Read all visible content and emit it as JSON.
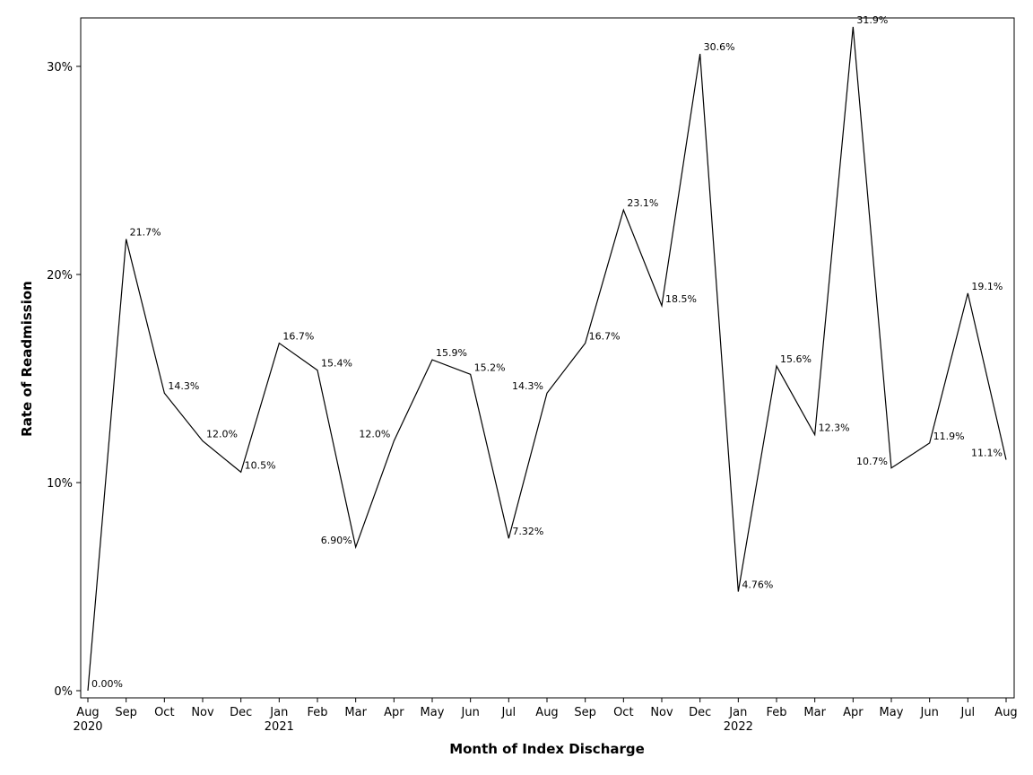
{
  "chart_data": {
    "type": "line",
    "title": "",
    "xlabel": "Month of Index Discharge",
    "ylabel": "Rate of Readmission",
    "ylim": [
      0,
      0.32
    ],
    "yticks": [
      {
        "value": 0,
        "label": "0%"
      },
      {
        "value": 0.1,
        "label": "10%"
      },
      {
        "value": 0.2,
        "label": "20%"
      },
      {
        "value": 0.3,
        "label": "30%"
      }
    ],
    "grid": false,
    "legend": "none",
    "line_color": "#000000",
    "categories": [
      "Aug",
      "Sep",
      "Oct",
      "Nov",
      "Dec",
      "Jan",
      "Feb",
      "Mar",
      "Apr",
      "May",
      "Jun",
      "Jul",
      "Aug",
      "Sep",
      "Oct",
      "Nov",
      "Dec",
      "Jan",
      "Feb",
      "Mar",
      "Apr",
      "May",
      "Jun",
      "Jul",
      "Aug"
    ],
    "years": [
      {
        "index": 0,
        "label": "2020"
      },
      {
        "index": 5,
        "label": "2021"
      },
      {
        "index": 17,
        "label": "2022"
      }
    ],
    "values": [
      0.0,
      0.217,
      0.143,
      0.12,
      0.105,
      0.167,
      0.154,
      0.069,
      0.12,
      0.159,
      0.152,
      0.0732,
      0.143,
      0.167,
      0.231,
      0.185,
      0.306,
      0.0476,
      0.156,
      0.123,
      0.319,
      0.107,
      0.119,
      0.191,
      0.111
    ],
    "data_labels": [
      "0.00%",
      "21.7%",
      "14.3%",
      "12.0%",
      "10.5%",
      "16.7%",
      "15.4%",
      "6.90%",
      "12.0%",
      "15.9%",
      "15.2%",
      "7.32%",
      "14.3%",
      "16.7%",
      "23.1%",
      "18.5%",
      "30.6%",
      "4.76%",
      "15.6%",
      "12.3%",
      "31.9%",
      "10.7%",
      "11.9%",
      "19.1%",
      "11.1%"
    ],
    "label_side": [
      "right",
      "right",
      "right",
      "right",
      "right",
      "right",
      "right",
      "left",
      "left",
      "right",
      "right",
      "right",
      "left",
      "right",
      "right",
      "right",
      "right",
      "right",
      "right",
      "right",
      "right",
      "left",
      "right",
      "right",
      "left"
    ]
  }
}
